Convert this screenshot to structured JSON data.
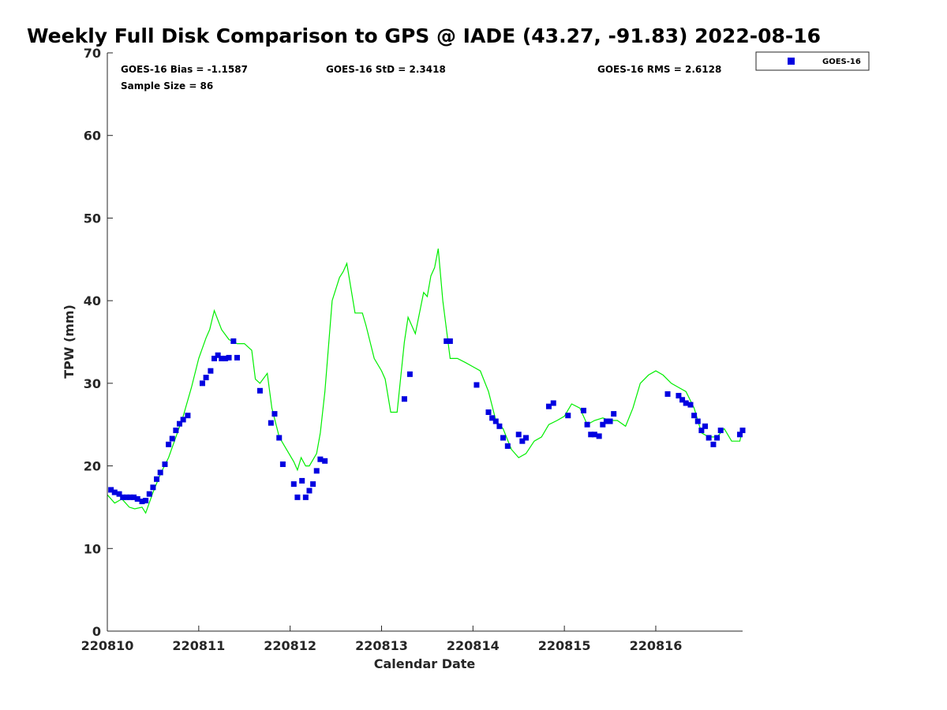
{
  "chart_data": {
    "type": "scatter",
    "title": "Weekly Full Disk Comparison to GPS @ IADE (43.27, -91.83) 2022-08-16",
    "xlabel": "Calendar Date",
    "ylabel": "TPW (mm)",
    "xlim": [
      220810.0,
      220816.95
    ],
    "ylim": [
      0,
      70
    ],
    "x_tick_labels": [
      "220810",
      "220811",
      "220812",
      "220813",
      "220814",
      "220815",
      "220816"
    ],
    "y_tick_labels": [
      "0",
      "10",
      "20",
      "30",
      "40",
      "50",
      "60",
      "70"
    ],
    "grid": false,
    "legend_position": "top-right, outside plot",
    "stats": {
      "bias": "GOES-16 Bias = -1.1587",
      "std": "GOES-16 StD = 2.3418",
      "rms": "GOES-16 RMS = 2.6128",
      "sample_size": "Sample Size = 86"
    },
    "series": [
      {
        "name": "GOES-16",
        "kind": "scatter",
        "marker": "square",
        "color": "#0000e0",
        "x": [
          220810.04,
          220810.08,
          220810.13,
          220810.17,
          220810.21,
          220810.25,
          220810.29,
          220810.33,
          220810.38,
          220810.42,
          220810.46,
          220810.5,
          220810.54,
          220810.58,
          220810.63,
          220810.67,
          220810.71,
          220810.75,
          220810.79,
          220810.83,
          220810.88,
          220811.04,
          220811.08,
          220811.13,
          220811.17,
          220811.21,
          220811.25,
          220811.29,
          220811.33,
          220811.38,
          220811.42,
          220811.67,
          220811.79,
          220811.83,
          220811.88,
          220811.92,
          220812.04,
          220812.08,
          220812.13,
          220812.17,
          220812.21,
          220812.25,
          220812.29,
          220812.33,
          220812.38,
          220813.25,
          220813.31,
          220813.71,
          220813.75,
          220814.04,
          220814.17,
          220814.21,
          220814.25,
          220814.29,
          220814.33,
          220814.38,
          220814.5,
          220814.54,
          220814.58,
          220814.83,
          220814.88,
          220815.04,
          220815.21,
          220815.25,
          220815.29,
          220815.33,
          220815.38,
          220815.42,
          220815.46,
          220815.5,
          220815.54,
          220816.13,
          220816.25,
          220816.29,
          220816.33,
          220816.38,
          220816.42,
          220816.46,
          220816.5,
          220816.54,
          220816.58,
          220816.63,
          220816.67,
          220816.71,
          220816.92,
          220816.95
        ],
        "y": [
          17.1,
          16.8,
          16.6,
          16.2,
          16.2,
          16.2,
          16.2,
          16.0,
          15.7,
          15.8,
          16.6,
          17.4,
          18.4,
          19.2,
          20.2,
          22.6,
          23.3,
          24.3,
          25.1,
          25.6,
          26.1,
          30.0,
          30.7,
          31.5,
          33.0,
          33.4,
          33.0,
          33.0,
          33.1,
          35.1,
          33.1,
          29.1,
          25.2,
          26.3,
          23.4,
          20.2,
          17.8,
          16.2,
          18.2,
          16.2,
          17.0,
          17.8,
          19.4,
          20.8,
          20.6,
          28.1,
          31.1,
          35.1,
          35.1,
          29.8,
          26.5,
          25.8,
          25.4,
          24.8,
          23.4,
          22.4,
          23.8,
          23.0,
          23.4,
          27.2,
          27.6,
          26.1,
          26.7,
          25.0,
          23.8,
          23.8,
          23.6,
          25.0,
          25.4,
          25.4,
          26.3,
          28.7,
          28.5,
          28.0,
          27.6,
          27.4,
          26.1,
          25.4,
          24.3,
          24.8,
          23.4,
          22.6,
          23.4,
          24.3,
          23.8,
          24.3
        ]
      },
      {
        "name": "",
        "kind": "line",
        "color": "#00ee00",
        "x": [
          220810.0,
          220810.08,
          220810.16,
          220810.24,
          220810.3,
          220810.38,
          220810.42,
          220810.5,
          220810.58,
          220810.67,
          220810.75,
          220810.83,
          220810.92,
          220811.0,
          220811.08,
          220811.12,
          220811.17,
          220811.25,
          220811.33,
          220811.42,
          220811.5,
          220811.58,
          220811.62,
          220811.67,
          220811.75,
          220811.8,
          220811.88,
          220811.96,
          220812.04,
          220812.08,
          220812.12,
          220812.17,
          220812.21,
          220812.29,
          220812.33,
          220812.38,
          220812.46,
          220812.54,
          220812.58,
          220812.62,
          220812.71,
          220812.79,
          220812.83,
          220812.92,
          220813.0,
          220813.04,
          220813.1,
          220813.17,
          220813.25,
          220813.29,
          220813.37,
          220813.46,
          220813.5,
          220813.54,
          220813.58,
          220813.62,
          220813.67,
          220813.75,
          220813.83,
          220813.92,
          220814.0,
          220814.08,
          220814.17,
          220814.25,
          220814.33,
          220814.42,
          220814.5,
          220814.58,
          220814.67,
          220814.75,
          220814.83,
          220814.92,
          220815.0,
          220815.08,
          220815.17,
          220815.25,
          220815.33,
          220815.42,
          220815.5,
          220815.58,
          220815.67,
          220815.75,
          220815.83,
          220815.92,
          220816.0,
          220816.08,
          220816.17,
          220816.25,
          220816.33,
          220816.42,
          220816.5,
          220816.58,
          220816.67,
          220816.75,
          220816.83,
          220816.92,
          220816.95
        ],
        "y": [
          16.5,
          15.5,
          16.0,
          15.0,
          14.8,
          15.0,
          14.3,
          16.8,
          19.0,
          21.0,
          23.5,
          26.0,
          29.5,
          33.0,
          35.5,
          36.5,
          38.8,
          36.5,
          35.3,
          34.8,
          34.8,
          34.0,
          30.5,
          30.0,
          31.2,
          27.0,
          23.5,
          22.0,
          20.5,
          19.5,
          21.0,
          20.0,
          20.0,
          21.5,
          24.0,
          29.0,
          40.0,
          42.8,
          43.5,
          44.5,
          38.5,
          38.5,
          37.0,
          33.0,
          31.5,
          30.5,
          26.5,
          26.5,
          35.0,
          38.0,
          36.0,
          41.0,
          40.5,
          43.0,
          44.0,
          46.3,
          40.0,
          33.0,
          33.0,
          32.5,
          32.0,
          31.5,
          29.0,
          25.5,
          24.5,
          22.0,
          21.0,
          21.5,
          23.0,
          23.5,
          25.0,
          25.5,
          26.0,
          27.5,
          27.0,
          25.0,
          25.5,
          25.8,
          25.5,
          25.5,
          24.8,
          27.0,
          30.0,
          31.0,
          31.5,
          31.0,
          30.0,
          29.5,
          29.0,
          27.0,
          24.0,
          23.5,
          23.5,
          24.5,
          23.0,
          23.0,
          24.5
        ]
      }
    ]
  }
}
